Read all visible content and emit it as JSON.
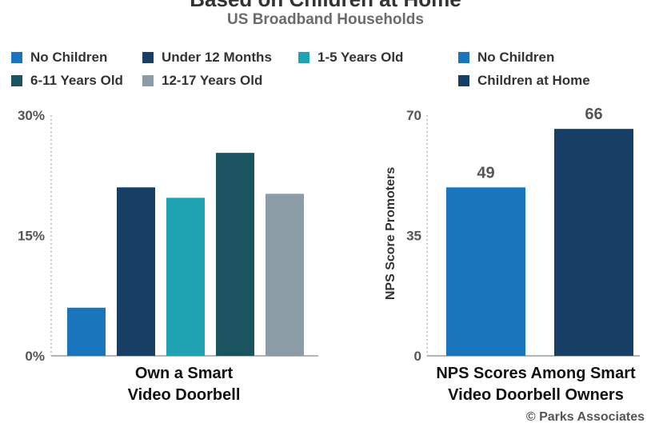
{
  "title": "Based on Children at Home",
  "subtitle": "US Broadband Households",
  "credit": "© Parks Associates",
  "legend_left": [
    {
      "label": "No Children",
      "color": "#1a75bc"
    },
    {
      "label": "Under 12 Months",
      "color": "#173f66"
    },
    {
      "label": "1-5 Years Old",
      "color": "#1fa2b2"
    },
    {
      "label": "6-11 Years Old",
      "color": "#1b5460"
    },
    {
      "label": "12-17 Years Old",
      "color": "#8c9ca6"
    }
  ],
  "legend_right": [
    {
      "label": "No Children",
      "color": "#1a75bc"
    },
    {
      "label": "Children at Home",
      "color": "#173f66"
    }
  ],
  "chart_data": [
    {
      "type": "bar",
      "xlabel": "Own a Smart\nVideo Doorbell",
      "ylabel": "",
      "ylim": [
        0,
        30
      ],
      "yticks": [
        "0%",
        "15%",
        "30%"
      ],
      "series": [
        {
          "name": "No Children",
          "values": [
            6
          ]
        },
        {
          "name": "Under 12 Months",
          "values": [
            21
          ]
        },
        {
          "name": "1-5 Years Old",
          "values": [
            19.7
          ]
        },
        {
          "name": "6-11 Years Old",
          "values": [
            25.3
          ]
        },
        {
          "name": "12-17 Years Old",
          "values": [
            20.2
          ]
        }
      ],
      "grid": false
    },
    {
      "type": "bar",
      "xlabel": "NPS Scores Among Smart\nVideo Doorbell Owners",
      "ylabel": "NPS Score Promoters",
      "ylim": [
        0,
        70
      ],
      "yticks": [
        "0",
        "35",
        "70"
      ],
      "series": [
        {
          "name": "No Children",
          "values": [
            49
          ]
        },
        {
          "name": "Children at Home",
          "values": [
            66
          ]
        }
      ],
      "data_labels": [
        "49",
        "66"
      ],
      "grid": false
    }
  ]
}
